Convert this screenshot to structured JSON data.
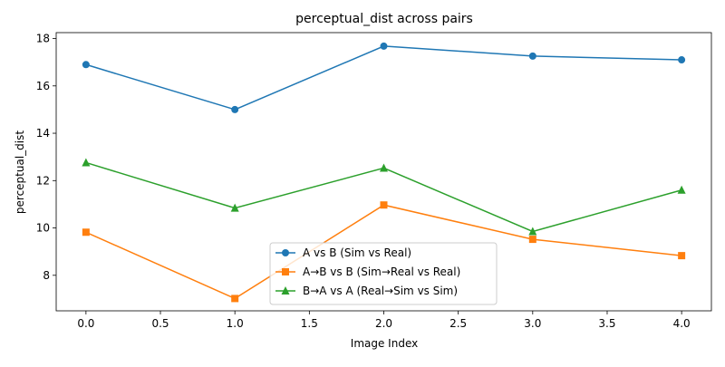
{
  "chart_data": {
    "type": "line",
    "title": "perceptual_dist across pairs",
    "xlabel": "Image Index",
    "ylabel": "perceptual_dist",
    "xlim": [
      -0.2,
      4.2
    ],
    "ylim": [
      6.5,
      18.25
    ],
    "x_ticks": [
      0.0,
      0.5,
      1.0,
      1.5,
      2.0,
      2.5,
      3.0,
      3.5,
      4.0
    ],
    "x_tick_labels": [
      "0.0",
      "0.5",
      "1.0",
      "1.5",
      "2.0",
      "2.5",
      "3.0",
      "3.5",
      "4.0"
    ],
    "y_ticks": [
      8,
      10,
      12,
      14,
      16,
      18
    ],
    "y_tick_labels": [
      "8",
      "10",
      "12",
      "14",
      "16",
      "18"
    ],
    "grid": false,
    "legend_position": "lower-center",
    "x": [
      0,
      1,
      2,
      3,
      4
    ],
    "series": [
      {
        "name": "A vs B (Sim vs Real)",
        "values": [
          16.9,
          15.0,
          17.68,
          17.26,
          17.1
        ],
        "color": "#1f77b4",
        "marker": "circle"
      },
      {
        "name": "A→B vs B (Sim→Real vs Real)",
        "values": [
          9.82,
          7.02,
          10.97,
          9.52,
          8.83
        ],
        "color": "#ff7f0e",
        "marker": "square"
      },
      {
        "name": "B→A vs A (Real→Sim vs Sim)",
        "values": [
          12.76,
          10.84,
          12.53,
          9.85,
          11.6
        ],
        "color": "#2ca02c",
        "marker": "triangle"
      }
    ]
  }
}
